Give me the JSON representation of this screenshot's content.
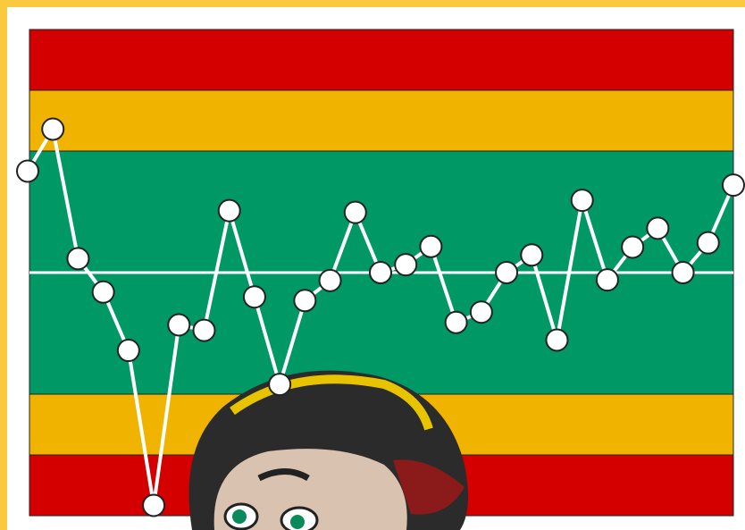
{
  "chart_data": {
    "type": "control",
    "x": [
      1,
      2,
      3,
      4,
      5,
      6,
      7,
      8,
      9,
      10,
      11,
      12,
      13,
      14,
      15,
      16,
      17,
      18,
      19,
      20,
      21,
      22,
      23,
      24,
      25,
      26,
      27,
      28,
      29
    ],
    "values": [
      1.67,
      2.36,
      0.23,
      -0.32,
      -1.28,
      -3.83,
      -0.86,
      -0.95,
      1.02,
      -0.4,
      -1.84,
      -0.46,
      -0.13,
      0.99,
      0,
      0.13,
      0.43,
      -0.82,
      -0.65,
      0,
      0.29,
      -1.11,
      1.19,
      -0.12,
      0.42,
      0.73,
      0,
      0.49,
      1.44
    ],
    "xlim": [
      1,
      29
    ],
    "ylim": [
      -4,
      4
    ],
    "center_line": 0,
    "bands": [
      {
        "from": 3,
        "to": 4,
        "color": "#d40000"
      },
      {
        "from": 2,
        "to": 3,
        "color": "#f0b400"
      },
      {
        "from": -2,
        "to": 2,
        "color": "#009966"
      },
      {
        "from": -3,
        "to": -2,
        "color": "#f0b400"
      },
      {
        "from": -4,
        "to": -3,
        "color": "#d40000"
      }
    ],
    "line_color": "#ffffff",
    "marker_color": "#ffffff"
  }
}
